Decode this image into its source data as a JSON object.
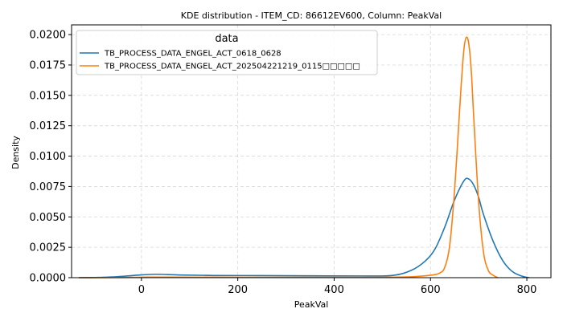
{
  "chart_data": {
    "type": "line",
    "title": "KDE distribution - ITEM_CD: 86612EV600, Column: PeakVal",
    "xlabel": "PeakVal",
    "ylabel": "Density",
    "xlim": [
      -145,
      850
    ],
    "ylim": [
      0,
      0.0208
    ],
    "x_ticks": [
      0,
      200,
      400,
      600,
      800
    ],
    "y_ticks": [
      0.0,
      0.0025,
      0.005,
      0.0075,
      0.01,
      0.0125,
      0.015,
      0.0175,
      0.02
    ],
    "y_tick_labels": [
      "0.0000",
      "0.0025",
      "0.0050",
      "0.0075",
      "0.0100",
      "0.0125",
      "0.0150",
      "0.0175",
      "0.0200"
    ],
    "x_tick_labels": [
      "0",
      "200",
      "400",
      "600",
      "800"
    ],
    "grid": true,
    "legend": {
      "title": "data",
      "position": "top-left"
    },
    "series": [
      {
        "name": "TB_PROCESS_DATA_ENGEL_ACT_0618_0628",
        "color": "#1f77b4",
        "x": [
          -130,
          -90,
          -50,
          -10,
          30,
          80,
          150,
          250,
          350,
          450,
          520,
          560,
          590,
          610,
          630,
          650,
          670,
          680,
          690,
          700,
          710,
          730,
          750,
          770,
          790,
          805
        ],
        "y": [
          0.0,
          2e-05,
          8e-05,
          0.0002,
          0.00028,
          0.00022,
          0.00018,
          0.00017,
          0.00015,
          0.00014,
          0.00018,
          0.0006,
          0.0014,
          0.0024,
          0.0042,
          0.0064,
          0.008,
          0.0081,
          0.0076,
          0.0066,
          0.0052,
          0.003,
          0.0014,
          0.0005,
          0.00012,
          0.0
        ]
      },
      {
        "name": "TB_PROCESS_DATA_ENGEL_ACT_202504221219_0115□□□□□",
        "color": "#ff7f0e",
        "x": [
          -130,
          -50,
          0,
          50,
          150,
          300,
          450,
          550,
          600,
          620,
          630,
          640,
          650,
          660,
          665,
          670,
          675,
          680,
          685,
          690,
          700,
          710,
          720,
          730,
          740
        ],
        "y": [
          0.0,
          1e-05,
          4e-05,
          5e-05,
          4e-05,
          3e-05,
          3e-05,
          6e-05,
          0.0002,
          0.0004,
          0.0009,
          0.0027,
          0.0072,
          0.0135,
          0.0166,
          0.019,
          0.0198,
          0.0191,
          0.0168,
          0.013,
          0.0062,
          0.0021,
          0.0006,
          0.0002,
          0.0
        ]
      }
    ]
  }
}
